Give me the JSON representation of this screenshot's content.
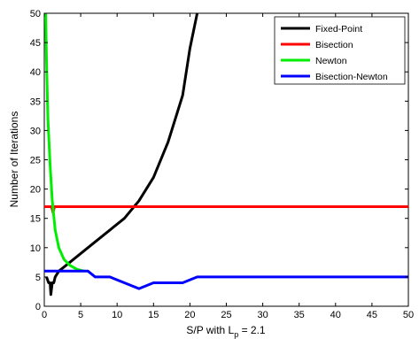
{
  "chart_data": {
    "type": "line",
    "title": "",
    "xlabel": "S/P with L",
    "xlabel_sub": "p",
    "xlabel_suffix": " = 2.1",
    "ylabel": "Number of Iterations",
    "xlim": [
      0,
      50
    ],
    "ylim": [
      0,
      50
    ],
    "xticks": [
      0,
      5,
      10,
      15,
      20,
      25,
      30,
      35,
      40,
      45,
      50
    ],
    "yticks": [
      0,
      5,
      10,
      15,
      20,
      25,
      30,
      35,
      40,
      45,
      50
    ],
    "grid": false,
    "legend_position": "top-right",
    "series": [
      {
        "name": "Fixed-Point",
        "color": "#000000",
        "points": [
          [
            0.3,
            5
          ],
          [
            0.6,
            4
          ],
          [
            0.8,
            4
          ],
          [
            0.9,
            2
          ],
          [
            1.1,
            4
          ],
          [
            1.3,
            4
          ],
          [
            1.5,
            5
          ],
          [
            2,
            6
          ],
          [
            3,
            7
          ],
          [
            5,
            9
          ],
          [
            7,
            11
          ],
          [
            9,
            13
          ],
          [
            11,
            15
          ],
          [
            13,
            18
          ],
          [
            15,
            22
          ],
          [
            17,
            28
          ],
          [
            19,
            36
          ],
          [
            20,
            44
          ],
          [
            21,
            50
          ]
        ]
      },
      {
        "name": "Bisection",
        "color": "#ff0000",
        "points": [
          [
            0,
            17
          ],
          [
            1,
            17
          ],
          [
            1.2,
            16
          ],
          [
            1.4,
            17
          ],
          [
            50,
            17
          ]
        ]
      },
      {
        "name": "Newton",
        "color": "#00ee00",
        "points": [
          [
            0.2,
            50
          ],
          [
            0.3,
            42
          ],
          [
            0.5,
            32
          ],
          [
            0.8,
            24
          ],
          [
            1.1,
            18
          ],
          [
            1.5,
            13
          ],
          [
            2,
            10
          ],
          [
            2.7,
            8
          ],
          [
            3.5,
            7
          ],
          [
            4.5,
            6.3
          ],
          [
            5.5,
            6
          ]
        ]
      },
      {
        "name": "Bisection-Newton",
        "color": "#0000ff",
        "points": [
          [
            0,
            6
          ],
          [
            6,
            6
          ],
          [
            7,
            5
          ],
          [
            9,
            5
          ],
          [
            13,
            3
          ],
          [
            15,
            4
          ],
          [
            19,
            4
          ],
          [
            21,
            5
          ],
          [
            50,
            5
          ]
        ]
      }
    ]
  }
}
